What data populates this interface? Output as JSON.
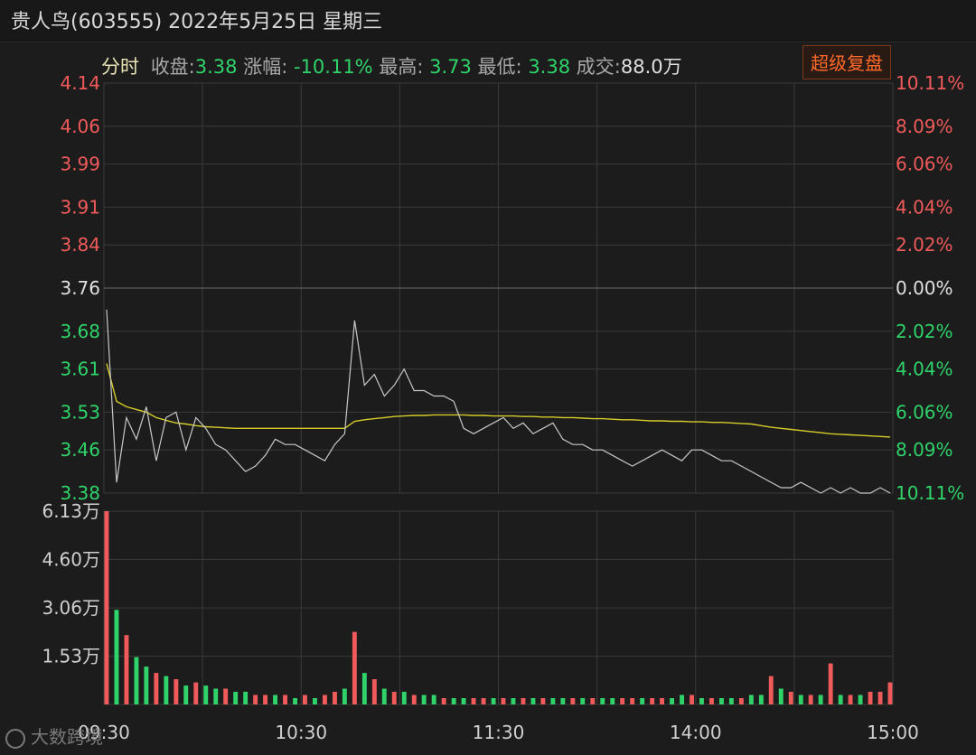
{
  "header": {
    "title": "贵人鸟(603555) 2022年5月25日 星期三"
  },
  "infobar": {
    "mode": "分时",
    "close_label": "收盘:",
    "close_value": "3.38",
    "change_label": "涨幅:",
    "change_value": "-10.11%",
    "high_label": "最高:",
    "high_value": "3.73",
    "low_label": "最低:",
    "low_value": "3.38",
    "volume_label": "成交:",
    "volume_value": "88.0万"
  },
  "replay_button": "超级复盘",
  "watermark": "大数跨境",
  "colors": {
    "up": "#f05a5a",
    "down": "#2fd36a",
    "neutral": "#e0e0e0",
    "price_line": "#c8c8c8",
    "avg_line": "#d6cc2a",
    "grid": "#3a3a3a"
  },
  "chart_data": {
    "type": "line",
    "prev_close": 3.76,
    "price_ticks": [
      "4.14",
      "4.06",
      "3.99",
      "3.91",
      "3.84",
      "3.76",
      "3.68",
      "3.61",
      "3.53",
      "3.46",
      "3.38"
    ],
    "pct_ticks": [
      "10.11%",
      "8.09%",
      "6.06%",
      "4.04%",
      "2.02%",
      "0.00%",
      "2.02%",
      "4.04%",
      "6.06%",
      "8.09%",
      "10.11%"
    ],
    "ylim": [
      3.38,
      4.14
    ],
    "x_ticks": [
      "09:30",
      "10:30",
      "11:30",
      "14:00",
      "15:00"
    ],
    "volume_ticks": [
      "6.13万",
      "4.60万",
      "3.06万",
      "1.53万"
    ],
    "volume_ylim": [
      0,
      6.13
    ],
    "series": [
      {
        "values": [
          3.72,
          3.4,
          3.52,
          3.48,
          3.54,
          3.44,
          3.52,
          3.53,
          3.46,
          3.52,
          3.5,
          3.47,
          3.46,
          3.44,
          3.42,
          3.43,
          3.45,
          3.48,
          3.47,
          3.47,
          3.46,
          3.45,
          3.44,
          3.47,
          3.49,
          3.7,
          3.58,
          3.6,
          3.56,
          3.58,
          3.61,
          3.57,
          3.57,
          3.56,
          3.56,
          3.55,
          3.5,
          3.49,
          3.5,
          3.51,
          3.52,
          3.5,
          3.51,
          3.49,
          3.5,
          3.51,
          3.48,
          3.47,
          3.47,
          3.46,
          3.46,
          3.45,
          3.44,
          3.43,
          3.44,
          3.45,
          3.46,
          3.45,
          3.44,
          3.46,
          3.46,
          3.45,
          3.44,
          3.44,
          3.43,
          3.42,
          3.41,
          3.4,
          3.39,
          3.39,
          3.4,
          3.39,
          3.38,
          3.39,
          3.38,
          3.39,
          3.38,
          3.38,
          3.39,
          3.38
        ]
      },
      {
        "values": [
          3.62,
          3.55,
          3.54,
          3.535,
          3.53,
          3.52,
          3.515,
          3.51,
          3.508,
          3.505,
          3.503,
          3.502,
          3.501,
          3.5,
          3.5,
          3.5,
          3.5,
          3.5,
          3.5,
          3.5,
          3.5,
          3.5,
          3.5,
          3.5,
          3.5,
          3.513,
          3.516,
          3.518,
          3.52,
          3.522,
          3.523,
          3.524,
          3.524,
          3.525,
          3.525,
          3.525,
          3.525,
          3.524,
          3.524,
          3.523,
          3.523,
          3.523,
          3.522,
          3.522,
          3.521,
          3.521,
          3.52,
          3.52,
          3.519,
          3.518,
          3.518,
          3.517,
          3.516,
          3.516,
          3.515,
          3.514,
          3.514,
          3.513,
          3.513,
          3.512,
          3.512,
          3.511,
          3.511,
          3.51,
          3.509,
          3.508,
          3.505,
          3.502,
          3.5,
          3.498,
          3.496,
          3.494,
          3.492,
          3.49,
          3.489,
          3.488,
          3.487,
          3.486,
          3.485,
          3.484
        ]
      }
    ],
    "volume": [
      6.13,
      3.0,
      2.2,
      1.5,
      1.2,
      1.0,
      0.9,
      0.8,
      0.6,
      0.7,
      0.6,
      0.5,
      0.5,
      0.4,
      0.4,
      0.3,
      0.3,
      0.3,
      0.3,
      0.2,
      0.3,
      0.2,
      0.3,
      0.4,
      0.5,
      2.3,
      1.0,
      0.8,
      0.5,
      0.4,
      0.4,
      0.3,
      0.3,
      0.3,
      0.2,
      0.2,
      0.2,
      0.2,
      0.2,
      0.2,
      0.2,
      0.2,
      0.2,
      0.2,
      0.2,
      0.2,
      0.2,
      0.2,
      0.2,
      0.2,
      0.2,
      0.2,
      0.2,
      0.2,
      0.2,
      0.2,
      0.2,
      0.2,
      0.3,
      0.3,
      0.2,
      0.2,
      0.2,
      0.2,
      0.2,
      0.3,
      0.3,
      0.9,
      0.5,
      0.4,
      0.3,
      0.3,
      0.3,
      1.3,
      0.3,
      0.3,
      0.3,
      0.4,
      0.4,
      0.7
    ],
    "volume_dir": [
      "up",
      "down",
      "up",
      "down",
      "down",
      "up",
      "down",
      "up",
      "down",
      "up",
      "down",
      "down",
      "up",
      "down",
      "down",
      "up",
      "up",
      "down",
      "up",
      "down",
      "up",
      "down",
      "up",
      "up",
      "down",
      "up",
      "down",
      "up",
      "down",
      "up",
      "down",
      "up",
      "down",
      "down",
      "up",
      "down",
      "down",
      "up",
      "up",
      "down",
      "up",
      "down",
      "up",
      "down",
      "up",
      "down",
      "down",
      "up",
      "down",
      "up",
      "down",
      "down",
      "up",
      "up",
      "down",
      "up",
      "up",
      "down",
      "down",
      "up",
      "down",
      "up",
      "down",
      "down",
      "up",
      "down",
      "down",
      "up",
      "down",
      "up",
      "down",
      "up",
      "down",
      "up",
      "down",
      "up",
      "down",
      "up",
      "up",
      "up"
    ]
  }
}
